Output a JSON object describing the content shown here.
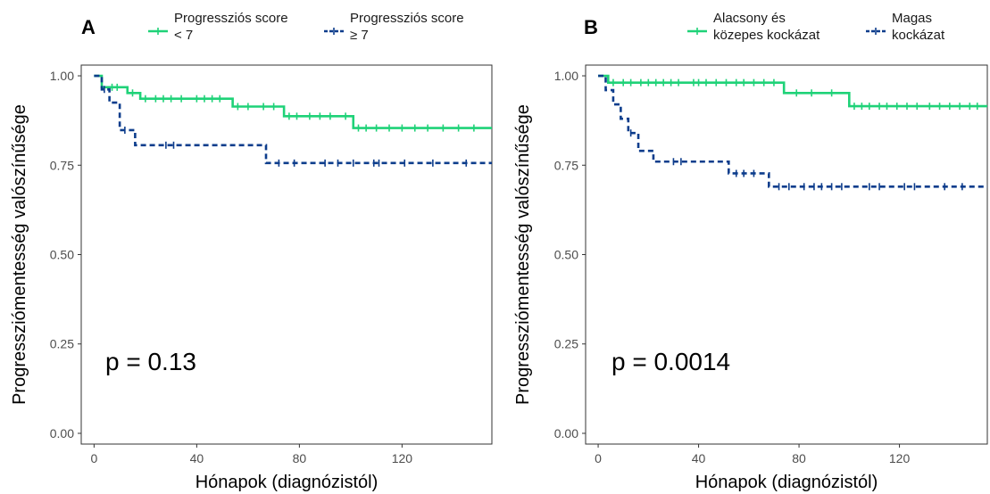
{
  "chart_data": [
    {
      "type": "line",
      "panel_label": "A",
      "xlabel": "Hónapok (diagnózistól)",
      "ylabel": "Progressziómentesség valószínűsége",
      "xlim": [
        -5,
        155
      ],
      "ylim": [
        -0.03,
        1.03
      ],
      "x_ticks": [
        0,
        40,
        80,
        120
      ],
      "x_tick_labels": [
        "0",
        "40",
        "80",
        "120"
      ],
      "y_ticks": [
        0.0,
        0.25,
        0.5,
        0.75,
        1.0
      ],
      "y_tick_labels": [
        "0.00",
        "0.25",
        "0.50",
        "0.75",
        "1.00"
      ],
      "grid": false,
      "legend_position": "top",
      "annotation": "p = 0.13",
      "series": [
        {
          "name_lines": [
            "Progressziós score",
            "< 7"
          ],
          "color": "#1fd278",
          "dash": "solid",
          "steps": [
            [
              0,
              1.0
            ],
            [
              3,
              0.968
            ],
            [
              13,
              0.952
            ],
            [
              18,
              0.936
            ],
            [
              54,
              0.914
            ],
            [
              74,
              0.887
            ],
            [
              101,
              0.854
            ],
            [
              155,
              0.854
            ]
          ],
          "censors": [
            [
              7,
              0.968
            ],
            [
              9,
              0.968
            ],
            [
              15,
              0.952
            ],
            [
              20,
              0.936
            ],
            [
              24,
              0.936
            ],
            [
              27,
              0.936
            ],
            [
              30,
              0.936
            ],
            [
              34,
              0.936
            ],
            [
              40,
              0.936
            ],
            [
              43,
              0.936
            ],
            [
              46,
              0.936
            ],
            [
              49,
              0.936
            ],
            [
              56,
              0.914
            ],
            [
              60,
              0.914
            ],
            [
              66,
              0.914
            ],
            [
              70,
              0.914
            ],
            [
              76,
              0.887
            ],
            [
              79,
              0.887
            ],
            [
              84,
              0.887
            ],
            [
              88,
              0.887
            ],
            [
              92,
              0.887
            ],
            [
              98,
              0.887
            ],
            [
              103,
              0.854
            ],
            [
              106,
              0.854
            ],
            [
              110,
              0.854
            ],
            [
              115,
              0.854
            ],
            [
              120,
              0.854
            ],
            [
              125,
              0.854
            ],
            [
              130,
              0.854
            ],
            [
              136,
              0.854
            ],
            [
              142,
              0.854
            ],
            [
              148,
              0.854
            ]
          ]
        },
        {
          "name_lines": [
            "Progressziós score",
            "≥ 7"
          ],
          "color": "#0d3d8c",
          "dash": "dashed",
          "steps": [
            [
              0,
              1.0
            ],
            [
              3,
              0.962
            ],
            [
              6,
              0.925
            ],
            [
              10,
              0.848
            ],
            [
              16,
              0.806
            ],
            [
              67,
              0.756
            ],
            [
              155,
              0.756
            ]
          ],
          "censors": [
            [
              4,
              0.962
            ],
            [
              12,
              0.848
            ],
            [
              28,
              0.806
            ],
            [
              31,
              0.806
            ],
            [
              72,
              0.756
            ],
            [
              78,
              0.756
            ],
            [
              90,
              0.756
            ],
            [
              95,
              0.756
            ],
            [
              101,
              0.756
            ],
            [
              109,
              0.756
            ],
            [
              111,
              0.756
            ],
            [
              121,
              0.756
            ],
            [
              132,
              0.756
            ],
            [
              145,
              0.756
            ]
          ]
        }
      ]
    },
    {
      "type": "line",
      "panel_label": "B",
      "xlabel": "Hónapok (diagnózistól)",
      "ylabel": "Progressziómentesség valószínűsége",
      "xlim": [
        -5,
        155
      ],
      "ylim": [
        -0.03,
        1.03
      ],
      "x_ticks": [
        0,
        40,
        80,
        120
      ],
      "x_tick_labels": [
        "0",
        "40",
        "80",
        "120"
      ],
      "y_ticks": [
        0.0,
        0.25,
        0.5,
        0.75,
        1.0
      ],
      "y_tick_labels": [
        "0.00",
        "0.25",
        "0.50",
        "0.75",
        "1.00"
      ],
      "grid": false,
      "legend_position": "top",
      "annotation": "p = 0.0014",
      "series": [
        {
          "name_lines": [
            "Alacsony és",
            "közepes kockázat"
          ],
          "color": "#1fd278",
          "dash": "solid",
          "steps": [
            [
              0,
              1.0
            ],
            [
              4,
              0.981
            ],
            [
              74,
              0.952
            ],
            [
              100,
              0.915
            ],
            [
              155,
              0.915
            ]
          ],
          "censors": [
            [
              6,
              0.981
            ],
            [
              10,
              0.981
            ],
            [
              13,
              0.981
            ],
            [
              17,
              0.981
            ],
            [
              20,
              0.981
            ],
            [
              23,
              0.981
            ],
            [
              26,
              0.981
            ],
            [
              29,
              0.981
            ],
            [
              32,
              0.981
            ],
            [
              38,
              0.981
            ],
            [
              40,
              0.981
            ],
            [
              43,
              0.981
            ],
            [
              47,
              0.981
            ],
            [
              51,
              0.981
            ],
            [
              55,
              0.981
            ],
            [
              58,
              0.981
            ],
            [
              62,
              0.981
            ],
            [
              66,
              0.981
            ],
            [
              70,
              0.981
            ],
            [
              79,
              0.952
            ],
            [
              85,
              0.952
            ],
            [
              93,
              0.952
            ],
            [
              102,
              0.915
            ],
            [
              105,
              0.915
            ],
            [
              108,
              0.915
            ],
            [
              112,
              0.915
            ],
            [
              115,
              0.915
            ],
            [
              119,
              0.915
            ],
            [
              123,
              0.915
            ],
            [
              127,
              0.915
            ],
            [
              132,
              0.915
            ],
            [
              136,
              0.915
            ],
            [
              140,
              0.915
            ],
            [
              144,
              0.915
            ],
            [
              148,
              0.915
            ],
            [
              151,
              0.915
            ]
          ]
        },
        {
          "name_lines": [
            "Magas",
            "kockázat"
          ],
          "color": "#0d3d8c",
          "dash": "dashed",
          "steps": [
            [
              0,
              1.0
            ],
            [
              3,
              0.96
            ],
            [
              6,
              0.92
            ],
            [
              9,
              0.88
            ],
            [
              12,
              0.84
            ],
            [
              16,
              0.79
            ],
            [
              22,
              0.76
            ],
            [
              52,
              0.727
            ],
            [
              68,
              0.69
            ],
            [
              155,
              0.69
            ]
          ],
          "censors": [
            [
              13,
              0.84
            ],
            [
              30,
              0.76
            ],
            [
              33,
              0.76
            ],
            [
              55,
              0.727
            ],
            [
              58,
              0.727
            ],
            [
              62,
              0.727
            ],
            [
              72,
              0.69
            ],
            [
              76,
              0.69
            ],
            [
              82,
              0.69
            ],
            [
              86,
              0.69
            ],
            [
              89,
              0.69
            ],
            [
              93,
              0.69
            ],
            [
              97,
              0.69
            ],
            [
              108,
              0.69
            ],
            [
              112,
              0.69
            ],
            [
              122,
              0.69
            ],
            [
              126,
              0.69
            ],
            [
              138,
              0.69
            ],
            [
              145,
              0.69
            ]
          ]
        }
      ]
    }
  ]
}
